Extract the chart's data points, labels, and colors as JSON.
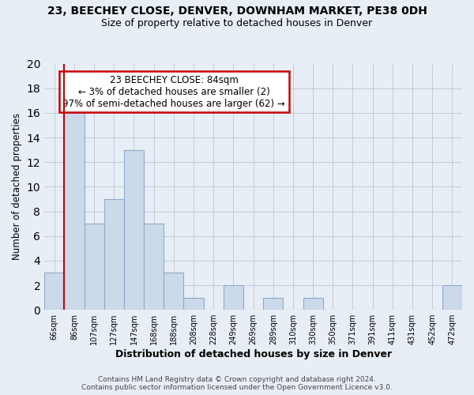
{
  "title": "23, BEECHEY CLOSE, DENVER, DOWNHAM MARKET, PE38 0DH",
  "subtitle": "Size of property relative to detached houses in Denver",
  "xlabel": "Distribution of detached houses by size in Denver",
  "ylabel": "Number of detached properties",
  "categories": [
    "66sqm",
    "86sqm",
    "107sqm",
    "127sqm",
    "147sqm",
    "168sqm",
    "188sqm",
    "208sqm",
    "228sqm",
    "249sqm",
    "269sqm",
    "289sqm",
    "310sqm",
    "330sqm",
    "350sqm",
    "371sqm",
    "391sqm",
    "411sqm",
    "431sqm",
    "452sqm",
    "472sqm"
  ],
  "values": [
    3,
    16,
    7,
    9,
    13,
    7,
    3,
    1,
    0,
    2,
    0,
    1,
    0,
    1,
    0,
    0,
    0,
    0,
    0,
    0,
    2
  ],
  "bar_color": "#ccd9ea",
  "bar_edge_color": "#8faacc",
  "highlight_line_color": "#cc0000",
  "annotation_text_line1": "23 BEECHEY CLOSE: 84sqm",
  "annotation_text_line2": "← 3% of detached houses are smaller (2)",
  "annotation_text_line3": "97% of semi-detached houses are larger (62) →",
  "ylim": [
    0,
    20
  ],
  "yticks": [
    0,
    2,
    4,
    6,
    8,
    10,
    12,
    14,
    16,
    18,
    20
  ],
  "footer_line1": "Contains HM Land Registry data © Crown copyright and database right 2024.",
  "footer_line2": "Contains public sector information licensed under the Open Government Licence v3.0.",
  "background_color": "#e8eef5",
  "plot_bg_color": "#e8eef5",
  "grid_color": "#c0ccd8"
}
